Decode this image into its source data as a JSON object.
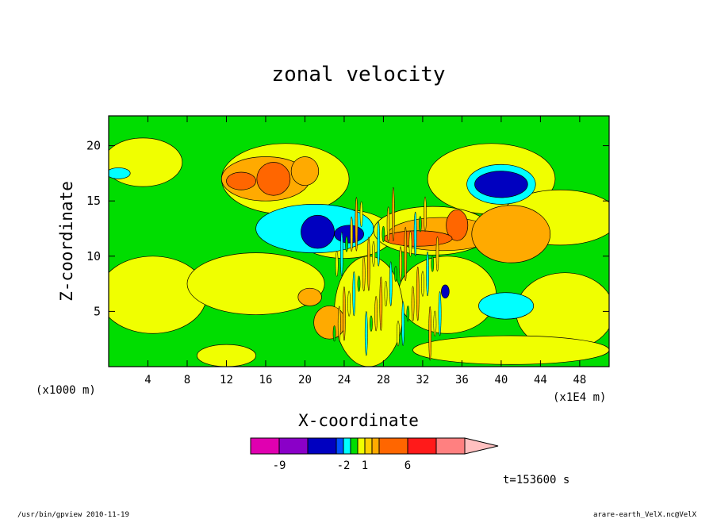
{
  "chart_data": {
    "type": "heatmap",
    "title": "zonal velocity",
    "xlabel": "X-coordinate",
    "ylabel": "Z-coordinate",
    "x_unit": "(x1E4 m)",
    "y_unit": "(x1000 m)",
    "xlim": [
      0,
      51
    ],
    "ylim": [
      0,
      22.7
    ],
    "x_ticks": [
      "4",
      "8",
      "12",
      "16",
      "20",
      "24",
      "28",
      "32",
      "36",
      "40",
      "44",
      "48"
    ],
    "y_ticks": [
      "5",
      "10",
      "15",
      "20"
    ],
    "x_tick_values": [
      4,
      8,
      12,
      16,
      20,
      24,
      28,
      32,
      36,
      40,
      44,
      48
    ],
    "y_tick_values": [
      5,
      10,
      15,
      20
    ],
    "background_level_color": "#00dd00",
    "color_levels": [
      {
        "lo": null,
        "hi": -9,
        "color": "#e000b0"
      },
      {
        "lo": -9,
        "hi": -6,
        "color": "#8a00c8"
      },
      {
        "lo": -6,
        "hi": -3,
        "color": "#0000c0"
      },
      {
        "lo": -3,
        "hi": -2,
        "color": "#0050ff"
      },
      {
        "lo": -2,
        "hi": -1,
        "color": "#00ffff"
      },
      {
        "lo": -1,
        "hi": 0,
        "color": "#00dd00"
      },
      {
        "lo": 0,
        "hi": 1,
        "color": "#f0ff00"
      },
      {
        "lo": 1,
        "hi": 2,
        "color": "#ffd000"
      },
      {
        "lo": 2,
        "hi": 3,
        "color": "#ffaa00"
      },
      {
        "lo": 3,
        "hi": 6,
        "color": "#ff6600"
      },
      {
        "lo": 6,
        "hi": 9,
        "color": "#ff1a1a"
      },
      {
        "lo": 9,
        "hi": 12,
        "color": "#ff8080"
      },
      {
        "lo": 12,
        "hi": null,
        "color": "#ffc0c0"
      }
    ],
    "colorbar_labels": [
      {
        "text": "-9",
        "value": -9
      },
      {
        "text": "-2",
        "value": -2
      },
      {
        "text": "1",
        "value": 1
      },
      {
        "text": "6",
        "value": 6
      }
    ],
    "regions": [
      {
        "value": 0.5,
        "cx": 3.5,
        "cz": 18.5,
        "rx": 4,
        "rz": 2.2
      },
      {
        "value": 0.5,
        "cx": 18,
        "cz": 17,
        "rx": 6.5,
        "rz": 3.2
      },
      {
        "value": 0.5,
        "cx": 39,
        "cz": 17,
        "rx": 6.5,
        "rz": 3.2
      },
      {
        "value": 0.5,
        "cx": 24,
        "cz": 12,
        "rx": 5,
        "rz": 2.2
      },
      {
        "value": 0.5,
        "cx": 33,
        "cz": 12.3,
        "rx": 6,
        "rz": 2.2
      },
      {
        "value": 0.5,
        "cx": 46,
        "cz": 13.5,
        "rx": 6,
        "rz": 2.5
      },
      {
        "value": 0.5,
        "cx": 4.5,
        "cz": 6.5,
        "rx": 5.5,
        "rz": 3.5
      },
      {
        "value": 0.5,
        "cx": 15,
        "cz": 7.5,
        "rx": 7,
        "rz": 2.8
      },
      {
        "value": 0.5,
        "cx": 34.5,
        "cz": 6.5,
        "rx": 5,
        "rz": 3.5
      },
      {
        "value": 0.5,
        "cx": 46.5,
        "cz": 5,
        "rx": 5,
        "rz": 3.5
      },
      {
        "value": 0.5,
        "cx": 26.5,
        "cz": 5,
        "rx": 3.5,
        "rz": 5
      },
      {
        "value": 0.5,
        "cx": 41,
        "cz": 1.5,
        "rx": 10,
        "rz": 1.3
      },
      {
        "value": 0.5,
        "cx": 12,
        "cz": 1,
        "rx": 3,
        "rz": 1
      },
      {
        "value": -1.5,
        "cx": 21,
        "cz": 12.5,
        "rx": 6,
        "rz": 2.2
      },
      {
        "value": -1.5,
        "cx": 40.5,
        "cz": 5.5,
        "rx": 2.8,
        "rz": 1.2
      },
      {
        "value": -1.5,
        "cx": 40,
        "cz": 16.5,
        "rx": 3.5,
        "rz": 1.8
      },
      {
        "value": -1.5,
        "cx": 1,
        "cz": 17.5,
        "rx": 1.2,
        "rz": 0.5
      },
      {
        "value": -4.5,
        "cx": 21.3,
        "cz": 12.2,
        "rx": 1.7,
        "rz": 1.5
      },
      {
        "value": -4.5,
        "cx": 24.5,
        "cz": 12,
        "rx": 1.5,
        "rz": 0.8
      },
      {
        "value": -4.5,
        "cx": 40,
        "cz": 16.5,
        "rx": 2.7,
        "rz": 1.2
      },
      {
        "value": -4.5,
        "cx": 34.3,
        "cz": 6.8,
        "rx": 0.4,
        "rz": 0.6
      },
      {
        "value": 2.5,
        "cx": 16,
        "cz": 17,
        "rx": 4.5,
        "rz": 2
      },
      {
        "value": 2.5,
        "cx": 20,
        "cz": 17.7,
        "rx": 1.4,
        "rz": 1.3
      },
      {
        "value": 2.5,
        "cx": 34,
        "cz": 12,
        "rx": 5.5,
        "rz": 1.5
      },
      {
        "value": 2.5,
        "cx": 41,
        "cz": 12,
        "rx": 4,
        "rz": 2.6
      },
      {
        "value": 2.5,
        "cx": 22.5,
        "cz": 4,
        "rx": 1.6,
        "rz": 1.5
      },
      {
        "value": 2.5,
        "cx": 20.5,
        "cz": 6.3,
        "rx": 1.2,
        "rz": 0.8
      },
      {
        "value": 4.5,
        "cx": 13.5,
        "cz": 16.8,
        "rx": 1.5,
        "rz": 0.8
      },
      {
        "value": 4.5,
        "cx": 16.8,
        "cz": 17,
        "rx": 1.7,
        "rz": 1.5
      },
      {
        "value": 4.5,
        "cx": 35.5,
        "cz": 12.8,
        "rx": 1.1,
        "rz": 1.4
      },
      {
        "value": 4.5,
        "cx": 31.5,
        "cz": 11.6,
        "rx": 3.5,
        "rz": 0.7
      }
    ],
    "time_label": "t=153600 s"
  },
  "footer": {
    "left": "/usr/bin/gpview  2010-11-19",
    "right": "arare-earth_VelX.nc@VelX"
  }
}
